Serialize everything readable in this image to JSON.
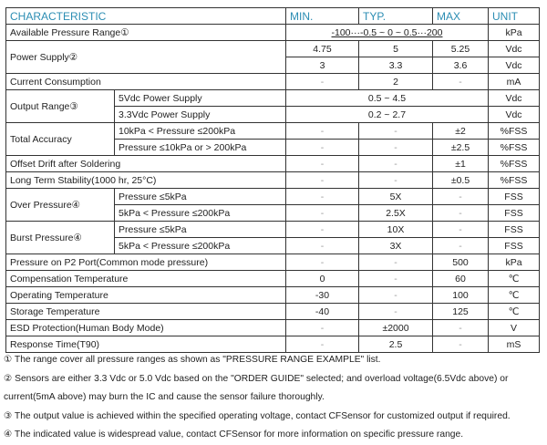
{
  "header": {
    "characteristic": "CHARACTERISTIC",
    "min": "MIN.",
    "typ": "TYP.",
    "max": "MAX",
    "unit": "UNIT"
  },
  "rows": [
    {
      "label": "Available Pressure Range①",
      "merged": "-100···-0.5 ~ 0 ~ 0.5···200",
      "underline": true,
      "unit": "kPa"
    },
    {
      "label": "Power Supply②",
      "lines": [
        {
          "min": "4.75",
          "typ": "5",
          "max": "5.25",
          "unit": "Vdc"
        },
        {
          "min": "3",
          "typ": "3.3",
          "max": "3.6",
          "unit": "Vdc"
        }
      ]
    },
    {
      "label": "Current Consumption",
      "min": "-",
      "typ": "2",
      "max": "-",
      "unit": "mA"
    },
    {
      "label": "Output Range③",
      "lines": [
        {
          "cond": "5Vdc Power Supply",
          "merged": "0.5 ~ 4.5",
          "unit": "Vdc"
        },
        {
          "cond": "3.3Vdc Power Supply",
          "merged": "0.2 ~ 2.7",
          "unit": "Vdc"
        }
      ]
    },
    {
      "label": "Total Accuracy",
      "lines": [
        {
          "cond": "10kPa < Pressure  ≤200kPa",
          "min": "-",
          "typ": "-",
          "max": "±2",
          "unit": "%FSS"
        },
        {
          "cond": "Pressure  ≤10kPa or > 200kPa",
          "min": "-",
          "typ": "-",
          "max": "±2.5",
          "unit": "%FSS"
        }
      ]
    },
    {
      "label": "Offset Drift after Soldering",
      "min": "-",
      "typ": "-",
      "max": "±1",
      "unit": "%FSS"
    },
    {
      "label": "Long Term Stability(1000 hr, 25°C)",
      "min": "-",
      "typ": "-",
      "max": "±0.5",
      "unit": "%FSS"
    },
    {
      "label": "Over Pressure④",
      "lines": [
        {
          "cond": "Pressure  ≤5kPa",
          "min": "-",
          "typ": "5X",
          "max": "-",
          "unit": "FSS"
        },
        {
          "cond": "5kPa < Pressure  ≤200kPa",
          "min": "-",
          "typ": "2.5X",
          "max": "-",
          "unit": "FSS"
        }
      ]
    },
    {
      "label": "Burst Pressure④",
      "lines": [
        {
          "cond": "Pressure  ≤5kPa",
          "min": "-",
          "typ": "10X",
          "max": "-",
          "unit": "FSS"
        },
        {
          "cond": "5kPa < Pressure  ≤200kPa",
          "min": "-",
          "typ": "3X",
          "max": "-",
          "unit": "FSS"
        }
      ]
    },
    {
      "label": "Pressure on P2 Port(Common mode pressure)",
      "min": "-",
      "typ": "-",
      "max": "500",
      "unit": "kPa"
    },
    {
      "label": "Compensation Temperature",
      "min": "0",
      "typ": "-",
      "max": "60",
      "unit": "℃"
    },
    {
      "label": "Operating Temperature",
      "min": "-30",
      "typ": "-",
      "max": "100",
      "unit": "℃"
    },
    {
      "label": "Storage Temperature",
      "min": "-40",
      "typ": "-",
      "max": "125",
      "unit": "℃"
    },
    {
      "label": "ESD Protection(Human Body Mode)",
      "min": "-",
      "typ": "±2000",
      "max": "-",
      "unit": "V"
    },
    {
      "label": "Response Time(T90)",
      "min": "-",
      "typ": "2.5",
      "max": "-",
      "unit": "mS"
    }
  ],
  "notes": [
    "① The range cover all pressure ranges as shown as \"PRESSURE RANGE EXAMPLE\" list.",
    "② Sensors are either 3.3 Vdc or 5.0 Vdc based on the \"ORDER GUIDE\" selected; and overload voltage(6.5Vdc above) or",
    "current(5mA above) may burn the IC and cause the sensor failure thoroughly.",
    "③ The output value is achieved within the specified operating voltage, contact CFSensor for customized output if required.",
    "④ The indicated value is widespread value, contact CFSensor for more information on specific pressure range."
  ],
  "colors": {
    "header_text": "#2b8db3",
    "border": "#333333"
  }
}
